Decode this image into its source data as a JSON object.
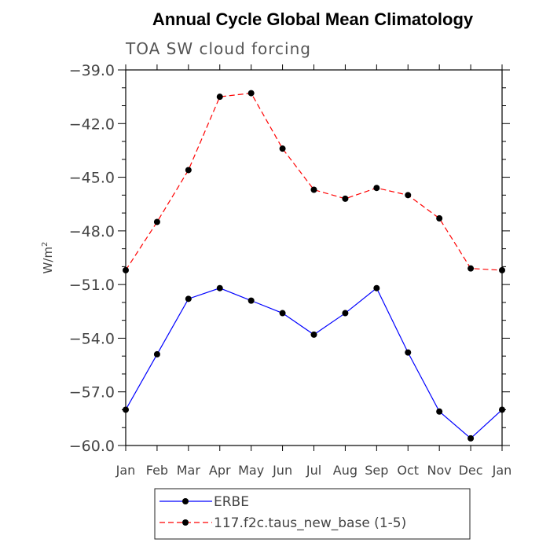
{
  "chart_data": {
    "type": "line",
    "title": "Annual Cycle Global Mean Climatology",
    "subtitle": "TOA SW cloud forcing",
    "xlabel": "",
    "ylabel": "W/m",
    "ylabel_superscript": "2",
    "categories": [
      "Jan",
      "Feb",
      "Mar",
      "Apr",
      "May",
      "Jun",
      "Jul",
      "Aug",
      "Sep",
      "Oct",
      "Nov",
      "Dec",
      "Jan"
    ],
    "ylim": [
      -60.0,
      -39.0
    ],
    "yticks": [
      "-39.0",
      "-42.0",
      "-45.0",
      "-48.0",
      "-51.0",
      "-54.0",
      "-57.0",
      "-60.0"
    ],
    "grid": false,
    "legend_position": "bottom",
    "series": [
      {
        "name": "ERBE",
        "color": "#0000ff",
        "dash": "solid",
        "values": [
          -58.0,
          -54.9,
          -51.8,
          -51.2,
          -51.9,
          -52.6,
          -53.8,
          -52.6,
          -51.2,
          -54.8,
          -58.1,
          -59.6,
          -58.0
        ]
      },
      {
        "name": "117.f2c.taus_new_base (1-5)",
        "color": "#ff0000",
        "dash": "dashed",
        "values": [
          -50.2,
          -47.5,
          -44.6,
          -40.5,
          -40.3,
          -43.4,
          -45.7,
          -46.2,
          -45.6,
          -46.0,
          -47.3,
          -50.1,
          -50.2
        ]
      }
    ]
  }
}
